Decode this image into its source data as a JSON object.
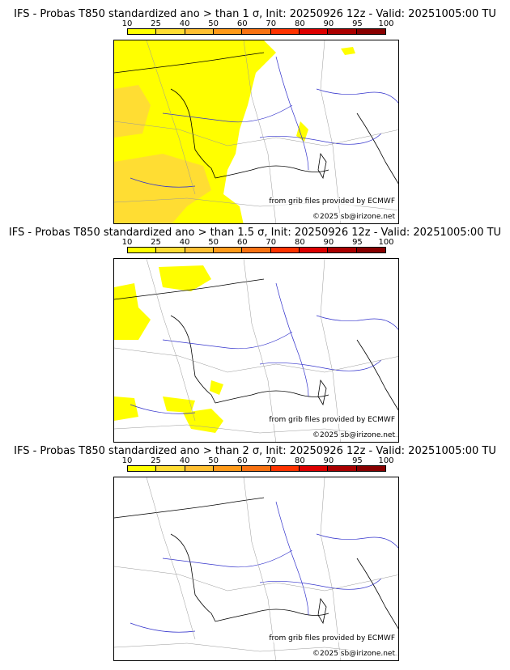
{
  "colorbar": {
    "ticks": [
      "10",
      "25",
      "40",
      "50",
      "60",
      "70",
      "80",
      "90",
      "95",
      "100"
    ],
    "colors": [
      "#ffff00",
      "#ffdd33",
      "#ffc032",
      "#ff9a19",
      "#f87212",
      "#ff3300",
      "#dd0000",
      "#aa0000",
      "#880000"
    ]
  },
  "credits": {
    "source": "from grib files provided by ECMWF",
    "copyright": "©2025 sb@irizone.net"
  },
  "panels": [
    {
      "title": "IFS - Probas T850  standardized ano > than 1 σ, Init: 20250926 12z - Valid: 20251005:00 TU",
      "coverage": "large"
    },
    {
      "title": "IFS - Probas T850  standardized ano > than 1.5 σ, Init: 20250926 12z - Valid: 20251005:00 TU",
      "coverage": "medium"
    },
    {
      "title": "IFS - Probas T850  standardized ano > than 2 σ, Init: 20250926 12z - Valid: 20251005:00 TU",
      "coverage": "none"
    }
  ]
}
